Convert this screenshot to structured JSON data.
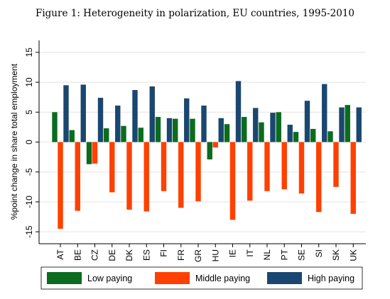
{
  "figure_title": "Figure 1: Heterogeneity in polarization, EU countries, 1995-2010",
  "chart_data": {
    "type": "bar",
    "title": "Figure 1: Heterogeneity in polarization, EU countries, 1995-2010",
    "xlabel": "",
    "ylabel": "%point change in share total employment",
    "ylim": [
      -17,
      17
    ],
    "yticks": [
      -15,
      -10,
      -5,
      0,
      5,
      10,
      15
    ],
    "grid": true,
    "legend_position": "bottom",
    "categories": [
      "AT",
      "BE",
      "CZ",
      "DE",
      "DK",
      "ES",
      "FI",
      "FR",
      "GR",
      "HU",
      "IE",
      "IT",
      "NL",
      "PT",
      "SE",
      "SI",
      "SK",
      "UK"
    ],
    "series": [
      {
        "name": "Low paying",
        "color": "#0b6b1e",
        "values": [
          5.0,
          2.0,
          -3.7,
          2.3,
          2.7,
          2.4,
          4.2,
          3.9,
          3.9,
          -2.9,
          3.0,
          4.2,
          3.3,
          5.0,
          1.7,
          2.2,
          1.8,
          6.2
        ]
      },
      {
        "name": "Middle paying",
        "color": "#ff4000",
        "values": [
          -14.5,
          -11.5,
          -3.6,
          -8.4,
          -11.3,
          -11.6,
          -8.2,
          -11.0,
          -9.9,
          -0.9,
          -13.0,
          -9.8,
          -8.2,
          -7.9,
          -8.6,
          -11.7,
          -7.5,
          -12.0
        ]
      },
      {
        "name": "High paying",
        "color": "#1a476f",
        "values": [
          9.5,
          9.6,
          7.4,
          6.1,
          8.7,
          9.3,
          4.0,
          7.3,
          6.1,
          4.0,
          10.2,
          5.7,
          4.9,
          2.9,
          6.9,
          9.7,
          5.8,
          5.8
        ]
      }
    ]
  }
}
